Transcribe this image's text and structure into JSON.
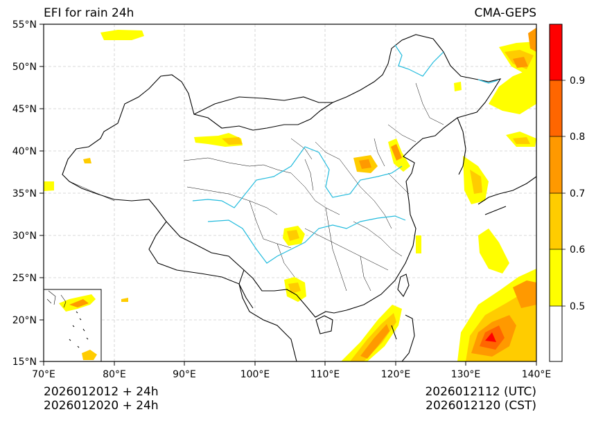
{
  "map": {
    "title_left": "EFI for rain 24h",
    "title_right": "CMA-GEPS",
    "lat_labels": [
      "55°N",
      "50°N",
      "45°N",
      "40°N",
      "35°N",
      "30°N",
      "25°N",
      "20°N",
      "15°N"
    ],
    "lon_labels": [
      "70°E",
      "80°E",
      "90°E",
      "100°E",
      "110°E",
      "120°E",
      "130°E",
      "140°E"
    ],
    "colorbar": {
      "labels": [
        "0.5",
        "0.6",
        "0.7",
        "0.8",
        "0.9"
      ],
      "colors": [
        "#ffffff",
        "#ffff00",
        "#ffcc00",
        "#ff9900",
        "#ff6600",
        "#ff0000"
      ]
    },
    "footer": {
      "init_utc": "2026012012 + 24h",
      "init_cst": "2026012020 + 24h",
      "valid_utc": "2026012112 (UTC)",
      "valid_cst": "2026012120 (CST)"
    }
  }
}
